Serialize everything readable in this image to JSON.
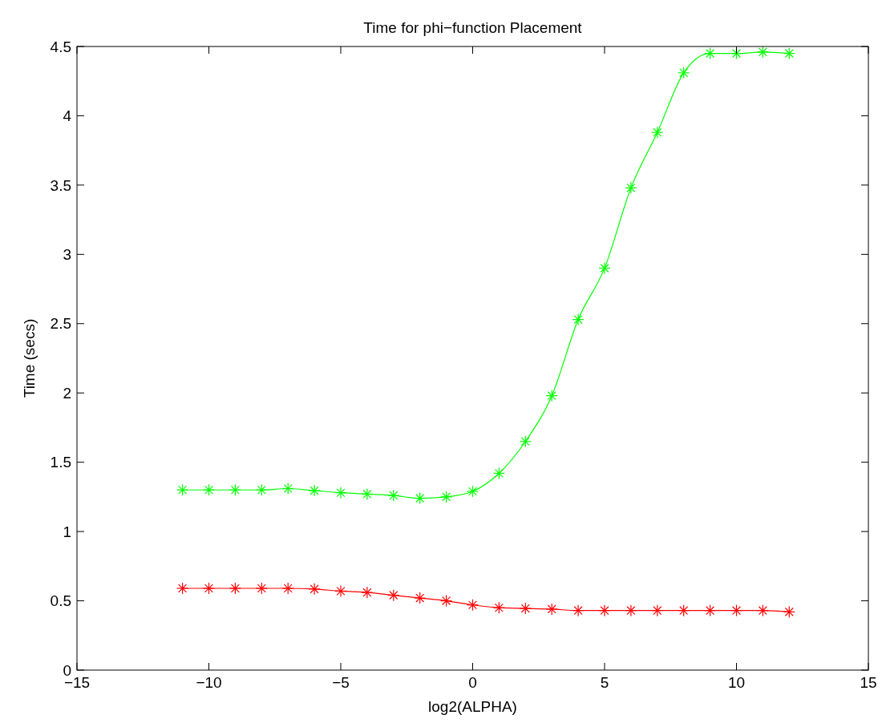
{
  "chart_data": {
    "type": "line",
    "title": "Time for phi−function Placement",
    "xlabel": "log2(ALPHA)",
    "ylabel": "Time (secs)",
    "x": [
      -11,
      -10,
      -9,
      -8,
      -7,
      -6,
      -5,
      -4,
      -3,
      -2,
      -1,
      0,
      1,
      2,
      3,
      4,
      5,
      6,
      7,
      8,
      9,
      10,
      11,
      12
    ],
    "series": [
      {
        "color": "#00ff00",
        "values": [
          1.3,
          1.3,
          1.3,
          1.3,
          1.31,
          1.295,
          1.28,
          1.27,
          1.26,
          1.24,
          1.25,
          1.29,
          1.42,
          1.65,
          1.98,
          2.53,
          2.9,
          3.48,
          3.88,
          4.31,
          4.45,
          4.45,
          4.46,
          4.45
        ]
      },
      {
        "color": "#ff0000",
        "values": [
          0.59,
          0.59,
          0.59,
          0.59,
          0.59,
          0.585,
          0.57,
          0.56,
          0.54,
          0.52,
          0.5,
          0.47,
          0.45,
          0.445,
          0.44,
          0.43,
          0.43,
          0.43,
          0.43,
          0.43,
          0.43,
          0.43,
          0.43,
          0.42
        ]
      }
    ],
    "xlim": [
      -15,
      15
    ],
    "xticks": [
      {
        "value": -15,
        "label": "−15"
      },
      {
        "value": -10,
        "label": "−10"
      },
      {
        "value": -5,
        "label": "−5"
      },
      0,
      5,
      10,
      15
    ],
    "ylim": [
      0,
      4.5
    ],
    "yticks": [
      0,
      0.5,
      1,
      1.5,
      2,
      2.5,
      3,
      3.5,
      4,
      4.5
    ],
    "grid": false,
    "marker": "cross",
    "line_style": "solid"
  }
}
